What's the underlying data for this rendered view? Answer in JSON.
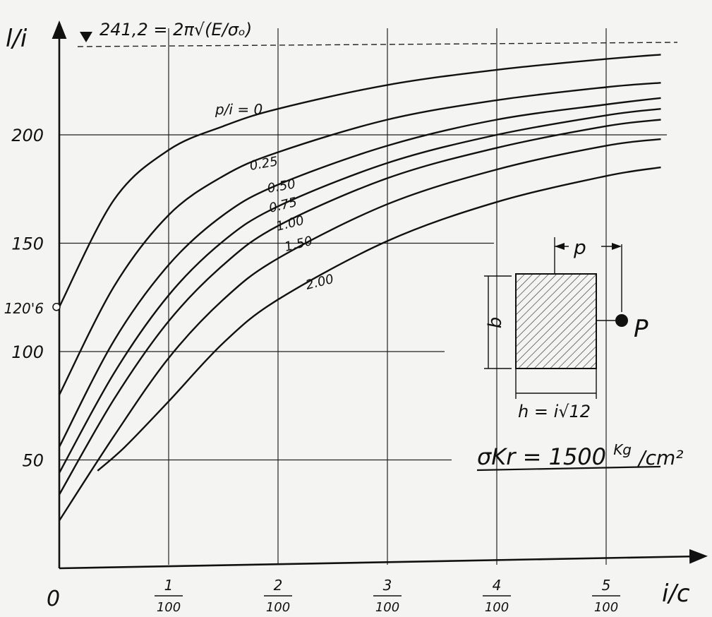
{
  "chart_data": {
    "type": "line",
    "xlabel": "i/c",
    "ylabel": "l/i",
    "xlim": [
      0,
      0.056
    ],
    "ylim": [
      0,
      250
    ],
    "grid": true,
    "origin_label": "0",
    "x_ticks": [
      {
        "value": 0.01,
        "num": "1",
        "den": "100"
      },
      {
        "value": 0.02,
        "num": "2",
        "den": "100"
      },
      {
        "value": 0.03,
        "num": "3",
        "den": "100"
      },
      {
        "value": 0.04,
        "num": "4",
        "den": "100"
      },
      {
        "value": 0.05,
        "num": "5",
        "den": "100"
      }
    ],
    "y_ticks": [
      {
        "value": 50,
        "label": "50"
      },
      {
        "value": 100,
        "label": "100"
      },
      {
        "value": 120.6,
        "label": "120'6"
      },
      {
        "value": 150,
        "label": "150"
      },
      {
        "value": 200,
        "label": "200"
      }
    ],
    "asymptote": {
      "value": 241.2,
      "label": "241,2 = 2π√(E/σₒ)"
    },
    "series_param": "p/i",
    "series": [
      {
        "name": "0",
        "label": "p/i = 0",
        "points": [
          [
            0,
            120.6
          ],
          [
            0.005,
            170
          ],
          [
            0.01,
            193
          ],
          [
            0.015,
            204
          ],
          [
            0.02,
            212
          ],
          [
            0.03,
            223
          ],
          [
            0.04,
            230
          ],
          [
            0.05,
            235
          ],
          [
            0.055,
            237
          ]
        ]
      },
      {
        "name": "0.25",
        "label": "0.25",
        "points": [
          [
            0,
            80
          ],
          [
            0.005,
            130
          ],
          [
            0.01,
            163
          ],
          [
            0.015,
            181
          ],
          [
            0.02,
            192
          ],
          [
            0.03,
            207
          ],
          [
            0.04,
            216
          ],
          [
            0.05,
            222
          ],
          [
            0.055,
            224
          ]
        ]
      },
      {
        "name": "0.50",
        "label": "0.50",
        "points": [
          [
            0,
            56
          ],
          [
            0.005,
            105
          ],
          [
            0.01,
            140
          ],
          [
            0.015,
            163
          ],
          [
            0.02,
            177
          ],
          [
            0.03,
            195
          ],
          [
            0.04,
            207
          ],
          [
            0.05,
            214
          ],
          [
            0.055,
            217
          ]
        ]
      },
      {
        "name": "0.75",
        "label": "0.75",
        "points": [
          [
            0,
            44
          ],
          [
            0.005,
            90
          ],
          [
            0.01,
            126
          ],
          [
            0.015,
            151
          ],
          [
            0.02,
            167
          ],
          [
            0.03,
            187
          ],
          [
            0.04,
            200
          ],
          [
            0.05,
            209
          ],
          [
            0.055,
            212
          ]
        ]
      },
      {
        "name": "1.00",
        "label": "1.00",
        "points": [
          [
            0,
            34
          ],
          [
            0.005,
            78
          ],
          [
            0.01,
            114
          ],
          [
            0.015,
            140
          ],
          [
            0.02,
            158
          ],
          [
            0.03,
            180
          ],
          [
            0.04,
            194
          ],
          [
            0.05,
            204
          ],
          [
            0.055,
            207
          ]
        ]
      },
      {
        "name": "1.50",
        "label": "1.50",
        "points": [
          [
            0,
            22
          ],
          [
            0.005,
            61
          ],
          [
            0.01,
            97
          ],
          [
            0.015,
            124
          ],
          [
            0.02,
            143
          ],
          [
            0.03,
            168
          ],
          [
            0.04,
            184
          ],
          [
            0.05,
            195
          ],
          [
            0.055,
            198
          ]
        ]
      },
      {
        "name": "2.00",
        "label": "2.00",
        "points": [
          [
            0.0035,
            45
          ],
          [
            0.006,
            56
          ],
          [
            0.01,
            77
          ],
          [
            0.015,
            104
          ],
          [
            0.02,
            124
          ],
          [
            0.03,
            151
          ],
          [
            0.04,
            169
          ],
          [
            0.05,
            181
          ],
          [
            0.055,
            185
          ]
        ]
      }
    ],
    "annotation": {
      "sigma": "σKr = 1500",
      "unit_sup": "Kg",
      "unit_rest": "/cm²"
    },
    "inset": {
      "p_label": "p",
      "P_label": "P",
      "b_label": "b",
      "h_label": "h = i√12"
    }
  }
}
